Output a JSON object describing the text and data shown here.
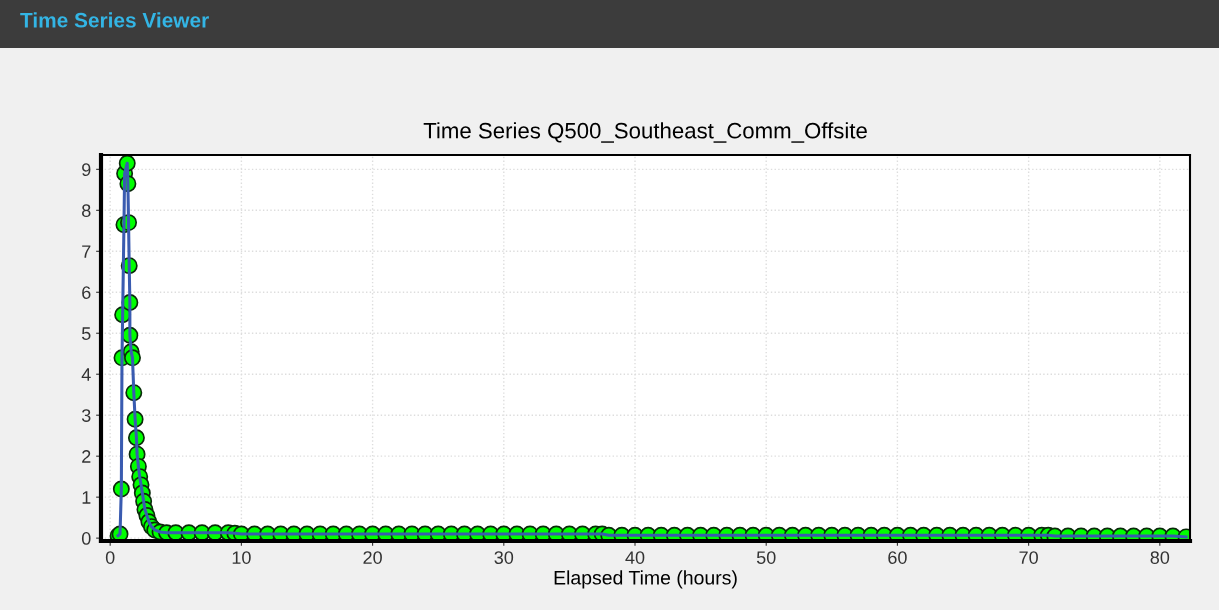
{
  "chart_data": {
    "type": "line",
    "title": "Time Series Q500_Southeast_Comm_Offsite",
    "xlabel": "Elapsed Time (hours)",
    "annotations": [
      "Time Series Viewer"
    ],
    "series": [
      {
        "color": "#00ff00",
        "x": [
          0.6,
          0.75,
          0.85,
          0.9,
          0.95,
          1.05,
          1.1,
          1.3,
          1.35,
          1.4,
          1.45,
          1.5,
          1.5,
          1.6,
          1.7,
          1.8,
          1.9,
          2.0,
          2.05,
          2.15,
          2.25,
          2.35,
          2.45,
          2.55,
          2.65,
          2.8,
          2.95,
          3.15,
          3.4,
          3.8,
          4.3,
          5,
          6,
          7,
          8,
          9,
          9.5,
          10,
          11,
          12,
          13,
          14,
          15,
          16,
          17,
          18,
          19,
          20,
          21,
          22,
          23,
          24,
          25,
          26,
          27,
          28,
          29,
          30,
          31,
          32,
          33,
          34,
          35,
          36,
          37,
          37.5,
          38,
          39,
          40,
          41,
          42,
          43,
          44,
          45,
          46,
          47,
          48,
          49,
          50,
          51,
          52,
          53,
          54,
          55,
          56,
          57,
          58,
          59,
          60,
          61,
          62,
          63,
          64,
          65,
          66,
          67,
          68,
          69,
          70,
          71,
          71.5,
          72,
          73,
          74,
          75,
          76,
          77,
          78,
          79,
          80,
          81,
          82
        ],
        "values": [
          0.06,
          0.1,
          1.2,
          4.4,
          5.45,
          7.65,
          8.9,
          9.15,
          8.65,
          7.7,
          6.65,
          5.75,
          4.95,
          4.55,
          4.4,
          3.55,
          2.9,
          2.45,
          2.05,
          1.75,
          1.5,
          1.3,
          1.1,
          0.9,
          0.7,
          0.55,
          0.4,
          0.28,
          0.2,
          0.15,
          0.13,
          0.13,
          0.13,
          0.13,
          0.13,
          0.13,
          0.12,
          0.1,
          0.1,
          0.1,
          0.1,
          0.1,
          0.1,
          0.1,
          0.1,
          0.1,
          0.1,
          0.1,
          0.1,
          0.1,
          0.1,
          0.1,
          0.1,
          0.1,
          0.1,
          0.1,
          0.1,
          0.1,
          0.1,
          0.1,
          0.1,
          0.1,
          0.1,
          0.1,
          0.1,
          0.1,
          0.07,
          0.07,
          0.07,
          0.07,
          0.07,
          0.07,
          0.07,
          0.07,
          0.07,
          0.07,
          0.07,
          0.07,
          0.07,
          0.07,
          0.07,
          0.07,
          0.07,
          0.07,
          0.07,
          0.07,
          0.07,
          0.07,
          0.07,
          0.07,
          0.07,
          0.07,
          0.07,
          0.07,
          0.07,
          0.07,
          0.07,
          0.07,
          0.07,
          0.07,
          0.07,
          0.05,
          0.05,
          0.05,
          0.05,
          0.05,
          0.05,
          0.05,
          0.05,
          0.05,
          0.05,
          0.03
        ]
      }
    ],
    "marker": "circle",
    "line_style": "solid",
    "xlim": [
      -0.7,
      82.3
    ],
    "ylim": [
      -0.07,
      9.35
    ],
    "xticks": [
      0,
      10,
      20,
      30,
      40,
      50,
      60,
      70,
      80
    ],
    "yticks": [
      0,
      1,
      2,
      3,
      4,
      5,
      6,
      7,
      8,
      9
    ],
    "grid": true,
    "legend": false
  }
}
